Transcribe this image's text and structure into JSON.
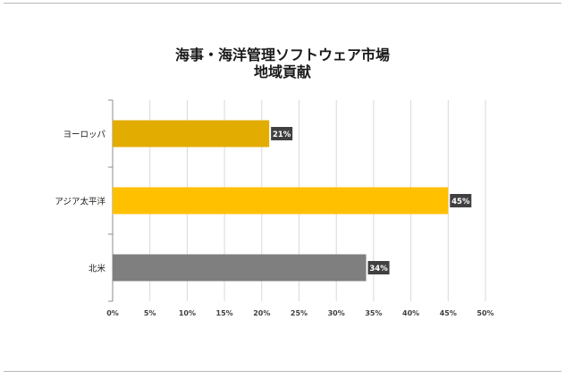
{
  "chart_data": {
    "type": "bar",
    "orientation": "horizontal",
    "title": [
      "海事・海洋管理ソフトウェア市場",
      "地域貢献"
    ],
    "categories": [
      "ヨーロッパ",
      "アジア太平洋",
      "北米"
    ],
    "values": [
      21,
      45,
      34
    ],
    "value_labels": [
      "21%",
      "45%",
      "34%"
    ],
    "bar_colors": [
      "#E2AC00",
      "#FFC000",
      "#7F7F7F"
    ],
    "xlim": [
      0,
      50
    ],
    "xticks": [
      0,
      5,
      10,
      15,
      20,
      25,
      30,
      35,
      40,
      45,
      50
    ],
    "xtick_labels": [
      "0%",
      "5%",
      "10%",
      "15%",
      "20%",
      "25%",
      "30%",
      "35%",
      "40%",
      "45%",
      "50%"
    ],
    "grid": true,
    "legend": "none"
  }
}
